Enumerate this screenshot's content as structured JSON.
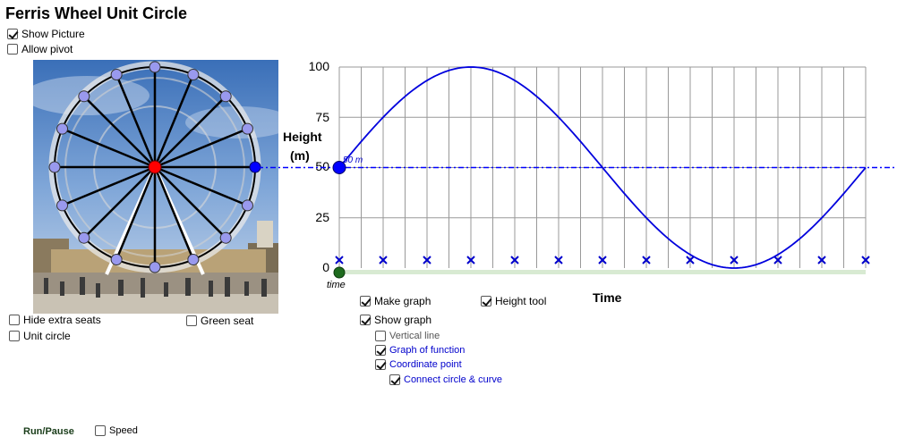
{
  "title": "Ferris Wheel Unit Circle",
  "checkboxes": {
    "show_picture": {
      "label": "Show Picture",
      "checked": true
    },
    "allow_pivot": {
      "label": "Allow pivot",
      "checked": false
    },
    "hide_extra_seats": {
      "label": "Hide extra seats",
      "checked": false
    },
    "unit_circle": {
      "label": "Unit circle",
      "checked": false
    },
    "green_seat": {
      "label": "Green seat",
      "checked": false
    },
    "make_graph": {
      "label": "Make graph",
      "checked": true
    },
    "height_tool": {
      "label": "Height tool",
      "checked": true
    },
    "show_graph": {
      "label": "Show graph",
      "checked": true
    },
    "vertical_line": {
      "label": "Vertical line",
      "checked": false
    },
    "graph_of_function": {
      "label": "Graph of function",
      "checked": true
    },
    "coordinate_point": {
      "label": "Coordinate point",
      "checked": true
    },
    "connect_circle_curve": {
      "label": "Connect circle & curve",
      "checked": true
    },
    "speed": {
      "label": "Speed",
      "checked": false
    }
  },
  "run_pause_label": "Run/Pause",
  "graph": {
    "y_label_line1": "Height",
    "y_label_line2": "(m)",
    "x_label": "Time",
    "slider_label": "time",
    "point_label": "50 m",
    "y_ticks": [
      "100",
      "75",
      "50",
      "25",
      "0"
    ],
    "ymin": 0,
    "ymax": 100,
    "curve_color": "#0000dd",
    "point_color": "#0000ff"
  },
  "wheel": {
    "hub_color": "#ff0000",
    "seat_color": "#9999ee",
    "selected_seat_color": "#0000ff"
  }
}
